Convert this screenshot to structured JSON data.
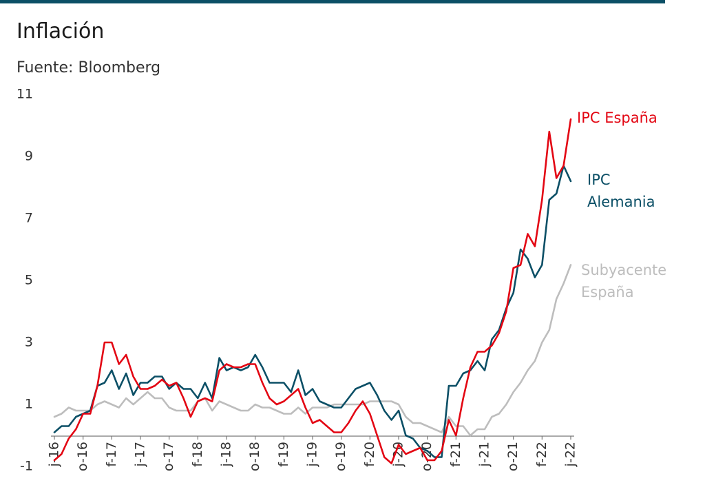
{
  "chart_data": {
    "type": "line",
    "title": "Inflación",
    "source": "Fuente: Bloomberg",
    "accent_color": "#0b4f66",
    "ylim": [
      -1,
      11
    ],
    "y_ticks": [
      11,
      9,
      7,
      5,
      3,
      1,
      -1
    ],
    "grid": false,
    "x_range": [
      "2016-06",
      "2022-06"
    ],
    "x_ticks": [
      "j-16",
      "o-16",
      "f-17",
      "j-17",
      "o-17",
      "f-18",
      "j-18",
      "o-18",
      "f-19",
      "j-19",
      "o-19",
      "f-20",
      "j-20",
      "o-20",
      "f-21",
      "j-21",
      "o-21",
      "f-22",
      "j-22"
    ],
    "series": [
      {
        "name": "IPC España",
        "label_lines": [
          "IPC España"
        ],
        "color": "#e30613",
        "values": [
          [
            "2016-06",
            -0.8
          ],
          [
            "2016-07",
            -0.6
          ],
          [
            "2016-08",
            -0.1
          ],
          [
            "2016-09",
            0.2
          ],
          [
            "2016-10",
            0.7
          ],
          [
            "2016-11",
            0.7
          ],
          [
            "2016-12",
            1.6
          ],
          [
            "2017-01",
            3.0
          ],
          [
            "2017-02",
            3.0
          ],
          [
            "2017-03",
            2.3
          ],
          [
            "2017-04",
            2.6
          ],
          [
            "2017-05",
            1.9
          ],
          [
            "2017-06",
            1.5
          ],
          [
            "2017-07",
            1.5
          ],
          [
            "2017-08",
            1.6
          ],
          [
            "2017-09",
            1.8
          ],
          [
            "2017-10",
            1.6
          ],
          [
            "2017-11",
            1.7
          ],
          [
            "2017-12",
            1.2
          ],
          [
            "2018-01",
            0.6
          ],
          [
            "2018-02",
            1.1
          ],
          [
            "2018-03",
            1.2
          ],
          [
            "2018-04",
            1.1
          ],
          [
            "2018-05",
            2.1
          ],
          [
            "2018-06",
            2.3
          ],
          [
            "2018-07",
            2.2
          ],
          [
            "2018-08",
            2.2
          ],
          [
            "2018-09",
            2.3
          ],
          [
            "2018-10",
            2.3
          ],
          [
            "2018-11",
            1.7
          ],
          [
            "2018-12",
            1.2
          ],
          [
            "2019-01",
            1.0
          ],
          [
            "2019-02",
            1.1
          ],
          [
            "2019-03",
            1.3
          ],
          [
            "2019-04",
            1.5
          ],
          [
            "2019-05",
            0.9
          ],
          [
            "2019-06",
            0.4
          ],
          [
            "2019-07",
            0.5
          ],
          [
            "2019-08",
            0.3
          ],
          [
            "2019-09",
            0.1
          ],
          [
            "2019-10",
            0.1
          ],
          [
            "2019-11",
            0.4
          ],
          [
            "2019-12",
            0.8
          ],
          [
            "2020-01",
            1.1
          ],
          [
            "2020-02",
            0.7
          ],
          [
            "2020-03",
            0.0
          ],
          [
            "2020-04",
            -0.7
          ],
          [
            "2020-05",
            -0.9
          ],
          [
            "2020-06",
            -0.3
          ],
          [
            "2020-07",
            -0.6
          ],
          [
            "2020-08",
            -0.5
          ],
          [
            "2020-09",
            -0.4
          ],
          [
            "2020-10",
            -0.8
          ],
          [
            "2020-11",
            -0.8
          ],
          [
            "2020-12",
            -0.5
          ],
          [
            "2021-01",
            0.5
          ],
          [
            "2021-02",
            0.0
          ],
          [
            "2021-03",
            1.2
          ],
          [
            "2021-04",
            2.2
          ],
          [
            "2021-05",
            2.7
          ],
          [
            "2021-06",
            2.7
          ],
          [
            "2021-07",
            2.9
          ],
          [
            "2021-08",
            3.3
          ],
          [
            "2021-09",
            4.0
          ],
          [
            "2021-10",
            5.4
          ],
          [
            "2021-11",
            5.5
          ],
          [
            "2021-12",
            6.5
          ],
          [
            "2022-01",
            6.1
          ],
          [
            "2022-02",
            7.6
          ],
          [
            "2022-03",
            9.8
          ],
          [
            "2022-04",
            8.3
          ],
          [
            "2022-05",
            8.7
          ],
          [
            "2022-06",
            10.2
          ]
        ]
      },
      {
        "name": "IPC Alemania",
        "label_lines": [
          "IPC",
          "Alemania"
        ],
        "color": "#0b4f66",
        "values": [
          [
            "2016-06",
            0.1
          ],
          [
            "2016-07",
            0.3
          ],
          [
            "2016-08",
            0.3
          ],
          [
            "2016-09",
            0.6
          ],
          [
            "2016-10",
            0.7
          ],
          [
            "2016-11",
            0.8
          ],
          [
            "2016-12",
            1.6
          ],
          [
            "2017-01",
            1.7
          ],
          [
            "2017-02",
            2.1
          ],
          [
            "2017-03",
            1.5
          ],
          [
            "2017-04",
            2.0
          ],
          [
            "2017-05",
            1.3
          ],
          [
            "2017-06",
            1.7
          ],
          [
            "2017-07",
            1.7
          ],
          [
            "2017-08",
            1.9
          ],
          [
            "2017-09",
            1.9
          ],
          [
            "2017-10",
            1.5
          ],
          [
            "2017-11",
            1.7
          ],
          [
            "2017-12",
            1.5
          ],
          [
            "2018-01",
            1.5
          ],
          [
            "2018-02",
            1.2
          ],
          [
            "2018-03",
            1.7
          ],
          [
            "2018-04",
            1.2
          ],
          [
            "2018-05",
            2.5
          ],
          [
            "2018-06",
            2.1
          ],
          [
            "2018-07",
            2.2
          ],
          [
            "2018-08",
            2.1
          ],
          [
            "2018-09",
            2.2
          ],
          [
            "2018-10",
            2.6
          ],
          [
            "2018-11",
            2.2
          ],
          [
            "2018-12",
            1.7
          ],
          [
            "2019-01",
            1.7
          ],
          [
            "2019-02",
            1.7
          ],
          [
            "2019-03",
            1.4
          ],
          [
            "2019-04",
            2.1
          ],
          [
            "2019-05",
            1.3
          ],
          [
            "2019-06",
            1.5
          ],
          [
            "2019-07",
            1.1
          ],
          [
            "2019-08",
            1.0
          ],
          [
            "2019-09",
            0.9
          ],
          [
            "2019-10",
            0.9
          ],
          [
            "2019-11",
            1.2
          ],
          [
            "2019-12",
            1.5
          ],
          [
            "2020-01",
            1.6
          ],
          [
            "2020-02",
            1.7
          ],
          [
            "2020-03",
            1.3
          ],
          [
            "2020-04",
            0.8
          ],
          [
            "2020-05",
            0.5
          ],
          [
            "2020-06",
            0.8
          ],
          [
            "2020-07",
            0.0
          ],
          [
            "2020-08",
            -0.1
          ],
          [
            "2020-09",
            -0.4
          ],
          [
            "2020-10",
            -0.5
          ],
          [
            "2020-11",
            -0.7
          ],
          [
            "2020-12",
            -0.7
          ],
          [
            "2021-01",
            1.6
          ],
          [
            "2021-02",
            1.6
          ],
          [
            "2021-03",
            2.0
          ],
          [
            "2021-04",
            2.1
          ],
          [
            "2021-05",
            2.4
          ],
          [
            "2021-06",
            2.1
          ],
          [
            "2021-07",
            3.1
          ],
          [
            "2021-08",
            3.4
          ],
          [
            "2021-09",
            4.1
          ],
          [
            "2021-10",
            4.6
          ],
          [
            "2021-11",
            6.0
          ],
          [
            "2021-12",
            5.7
          ],
          [
            "2022-01",
            5.1
          ],
          [
            "2022-02",
            5.5
          ],
          [
            "2022-03",
            7.6
          ],
          [
            "2022-04",
            7.8
          ],
          [
            "2022-05",
            8.7
          ],
          [
            "2022-06",
            8.2
          ]
        ]
      },
      {
        "name": "Subyacente España",
        "label_lines": [
          "Subyacente",
          "España"
        ],
        "color": "#bdbdbd",
        "values": [
          [
            "2016-06",
            0.6
          ],
          [
            "2016-07",
            0.7
          ],
          [
            "2016-08",
            0.9
          ],
          [
            "2016-09",
            0.8
          ],
          [
            "2016-10",
            0.8
          ],
          [
            "2016-11",
            0.8
          ],
          [
            "2016-12",
            1.0
          ],
          [
            "2017-01",
            1.1
          ],
          [
            "2017-02",
            1.0
          ],
          [
            "2017-03",
            0.9
          ],
          [
            "2017-04",
            1.2
          ],
          [
            "2017-05",
            1.0
          ],
          [
            "2017-06",
            1.2
          ],
          [
            "2017-07",
            1.4
          ],
          [
            "2017-08",
            1.2
          ],
          [
            "2017-09",
            1.2
          ],
          [
            "2017-10",
            0.9
          ],
          [
            "2017-11",
            0.8
          ],
          [
            "2017-12",
            0.8
          ],
          [
            "2018-01",
            0.8
          ],
          [
            "2018-02",
            1.1
          ],
          [
            "2018-03",
            1.2
          ],
          [
            "2018-04",
            0.8
          ],
          [
            "2018-05",
            1.1
          ],
          [
            "2018-06",
            1.0
          ],
          [
            "2018-07",
            0.9
          ],
          [
            "2018-08",
            0.8
          ],
          [
            "2018-09",
            0.8
          ],
          [
            "2018-10",
            1.0
          ],
          [
            "2018-11",
            0.9
          ],
          [
            "2018-12",
            0.9
          ],
          [
            "2019-01",
            0.8
          ],
          [
            "2019-02",
            0.7
          ],
          [
            "2019-03",
            0.7
          ],
          [
            "2019-04",
            0.9
          ],
          [
            "2019-05",
            0.7
          ],
          [
            "2019-06",
            0.9
          ],
          [
            "2019-07",
            0.9
          ],
          [
            "2019-08",
            0.9
          ],
          [
            "2019-09",
            1.0
          ],
          [
            "2019-10",
            1.0
          ],
          [
            "2019-11",
            1.0
          ],
          [
            "2019-12",
            1.0
          ],
          [
            "2020-01",
            1.0
          ],
          [
            "2020-02",
            1.1
          ],
          [
            "2020-03",
            1.1
          ],
          [
            "2020-04",
            1.1
          ],
          [
            "2020-05",
            1.1
          ],
          [
            "2020-06",
            1.0
          ],
          [
            "2020-07",
            0.6
          ],
          [
            "2020-08",
            0.4
          ],
          [
            "2020-09",
            0.4
          ],
          [
            "2020-10",
            0.3
          ],
          [
            "2020-11",
            0.2
          ],
          [
            "2020-12",
            0.1
          ],
          [
            "2021-01",
            0.6
          ],
          [
            "2021-02",
            0.3
          ],
          [
            "2021-03",
            0.3
          ],
          [
            "2021-04",
            0.0
          ],
          [
            "2021-05",
            0.2
          ],
          [
            "2021-06",
            0.2
          ],
          [
            "2021-07",
            0.6
          ],
          [
            "2021-08",
            0.7
          ],
          [
            "2021-09",
            1.0
          ],
          [
            "2021-10",
            1.4
          ],
          [
            "2021-11",
            1.7
          ],
          [
            "2021-12",
            2.1
          ],
          [
            "2022-01",
            2.4
          ],
          [
            "2022-02",
            3.0
          ],
          [
            "2022-03",
            3.4
          ],
          [
            "2022-04",
            4.4
          ],
          [
            "2022-05",
            4.9
          ],
          [
            "2022-06",
            5.5
          ]
        ]
      }
    ]
  }
}
